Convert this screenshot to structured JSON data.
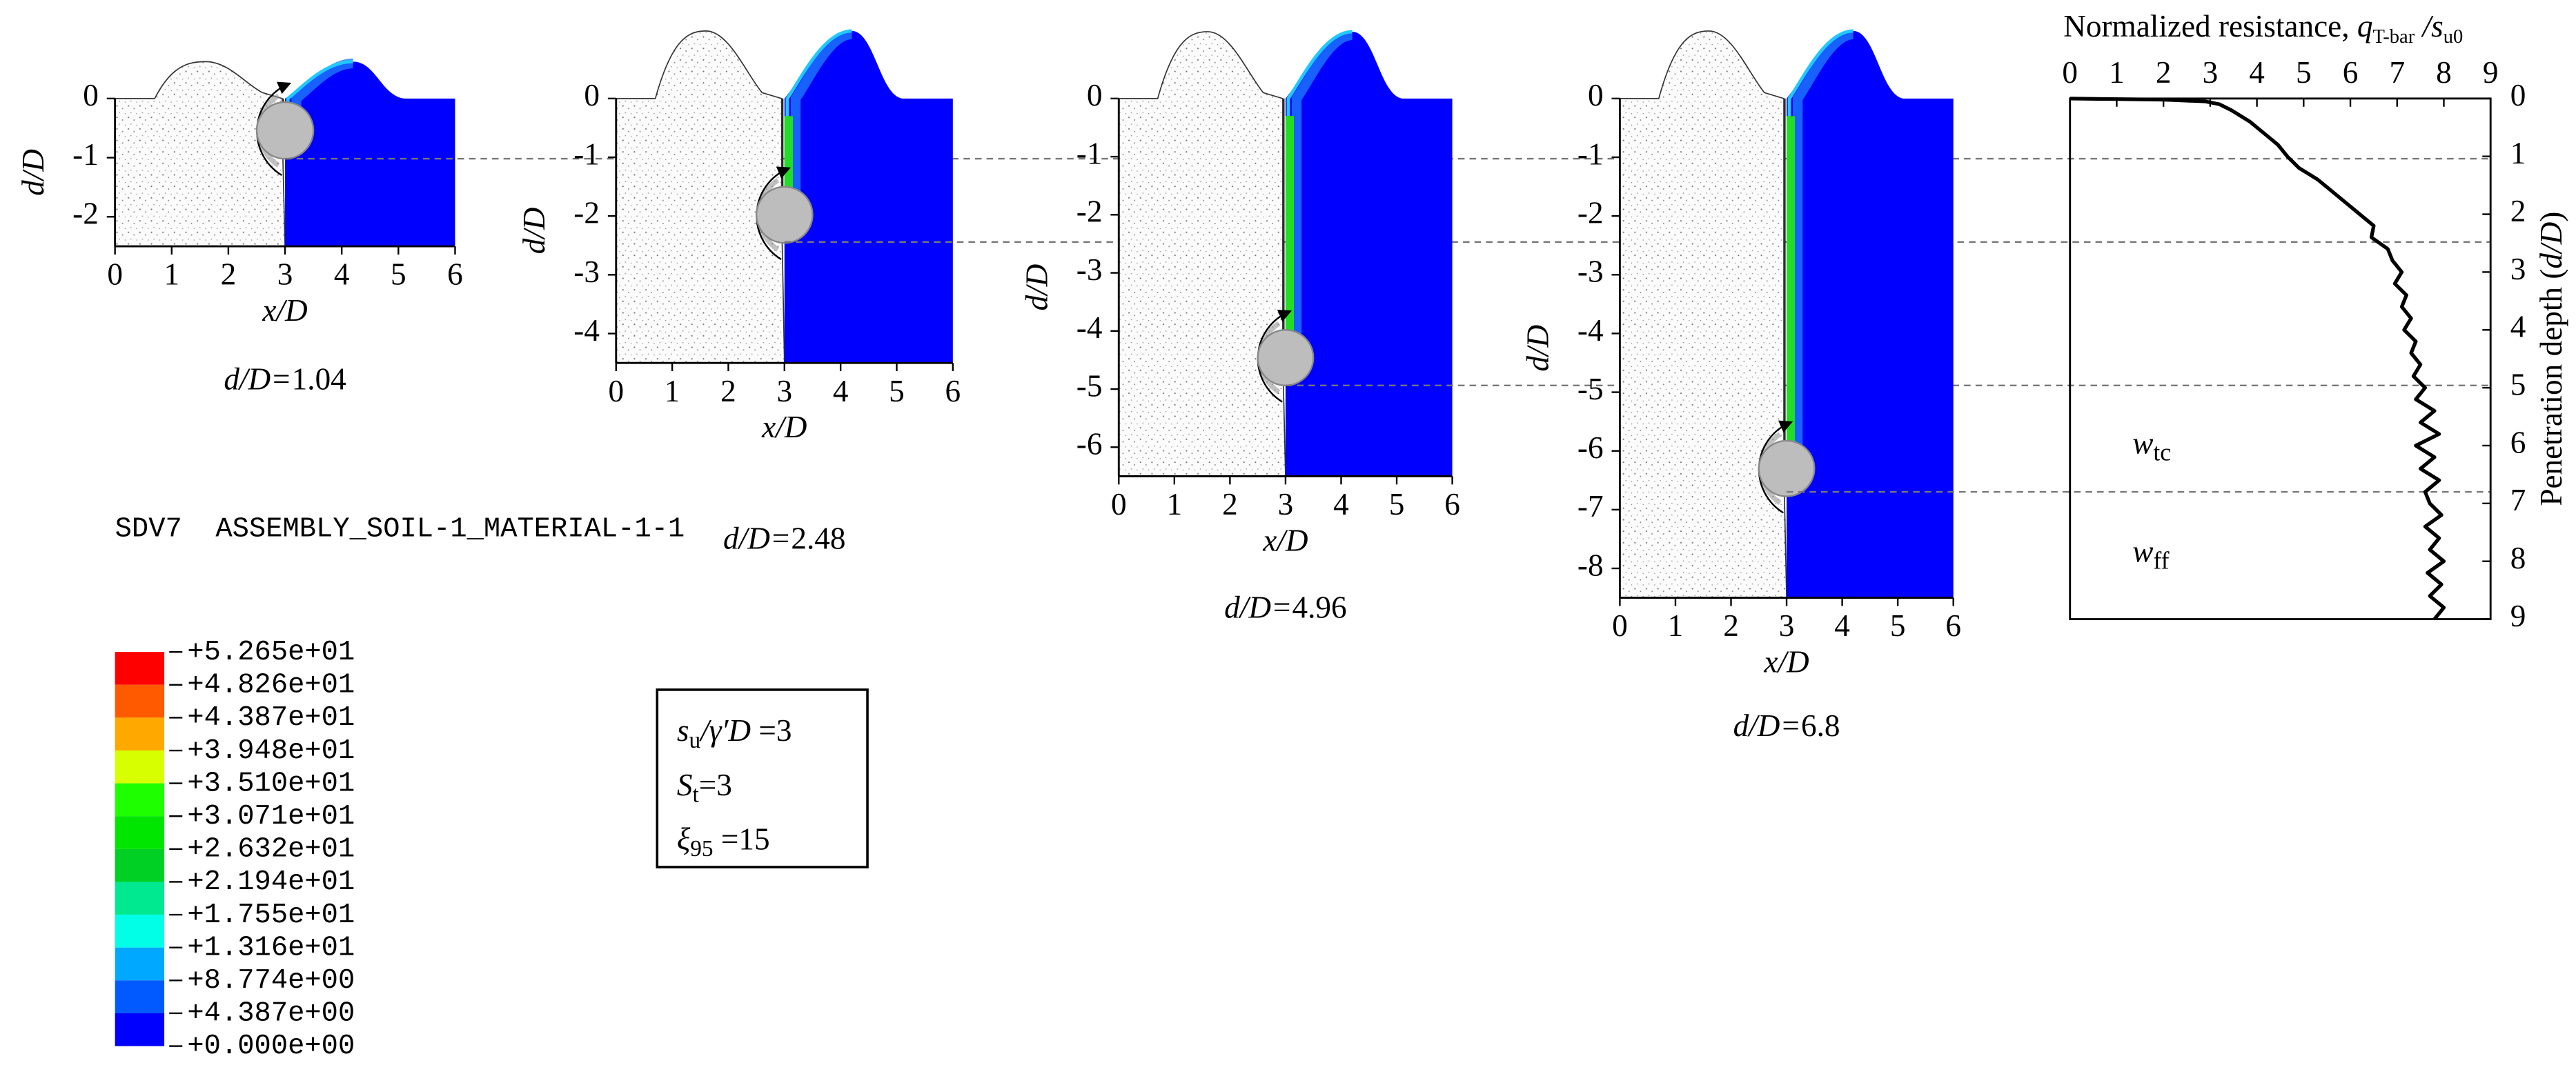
{
  "panels": [
    {
      "xlim": [
        0,
        6
      ],
      "ylim": [
        -2.5,
        0
      ],
      "xticks": [
        0,
        1,
        2,
        3,
        4,
        5,
        6
      ],
      "yticks": [
        0,
        -1,
        -2
      ],
      "xlabel": "x/D",
      "ylabel": "d/D",
      "caption": "d/D=",
      "depth": 1.04
    },
    {
      "xlim": [
        0,
        6
      ],
      "ylim": [
        -4.5,
        0
      ],
      "xticks": [
        0,
        1,
        2,
        3,
        4,
        5,
        6
      ],
      "yticks": [
        0,
        -1,
        -2,
        -3,
        -4
      ],
      "xlabel": "x/D",
      "ylabel": "d/D",
      "caption": "d/D=",
      "depth": 2.48
    },
    {
      "xlim": [
        0,
        6
      ],
      "ylim": [
        -6.5,
        0
      ],
      "xticks": [
        0,
        1,
        2,
        3,
        4,
        5,
        6
      ],
      "yticks": [
        0,
        -1,
        -2,
        -3,
        -4,
        -5,
        -6
      ],
      "xlabel": "x/D",
      "ylabel": "d/D",
      "caption": "d/D=",
      "depth": 4.96
    },
    {
      "xlim": [
        0,
        6
      ],
      "ylim": [
        -8.5,
        0
      ],
      "xticks": [
        0,
        1,
        2,
        3,
        4,
        5,
        6
      ],
      "yticks": [
        0,
        -1,
        -2,
        -3,
        -4,
        -5,
        -6,
        -7,
        -8
      ],
      "xlabel": "x/D",
      "ylabel": "d/D",
      "caption": "d/D=",
      "depth": 6.8
    }
  ],
  "colorbar": {
    "title": "SDV7  ASSEMBLY_SOIL-1_MATERIAL-1-1",
    "clim": [
      0,
      52.65
    ],
    "ticks": [
      {
        "value": 52.65,
        "label": "+5.265e+01"
      },
      {
        "value": 48.26,
        "label": "+4.826e+01"
      },
      {
        "value": 43.87,
        "label": "+4.387e+01"
      },
      {
        "value": 39.48,
        "label": "+3.948e+01"
      },
      {
        "value": 35.1,
        "label": "+3.510e+01"
      },
      {
        "value": 30.71,
        "label": "+3.071e+01"
      },
      {
        "value": 26.32,
        "label": "+2.632e+01"
      },
      {
        "value": 21.94,
        "label": "+2.194e+01"
      },
      {
        "value": 17.55,
        "label": "+1.755e+01"
      },
      {
        "value": 13.16,
        "label": "+1.316e+01"
      },
      {
        "value": 8.774,
        "label": "+8.774e+00"
      },
      {
        "value": 4.387,
        "label": "+4.387e+00"
      },
      {
        "value": 0,
        "label": "+0.000e+00"
      }
    ],
    "colors": [
      "#ff0000",
      "#ff5a00",
      "#ffa800",
      "#d8ff00",
      "#1eff00",
      "#00e600",
      "#00d024",
      "#00e890",
      "#00ffe6",
      "#00a8ff",
      "#005aff",
      "#0000ff"
    ]
  },
  "parameters": [
    [
      {
        "text": "s",
        "style": "italic"
      },
      {
        "text": "u",
        "style": "sub"
      },
      {
        "text": "/γ′D",
        "style": "italic"
      },
      {
        "text": " =3",
        "style": "normal"
      }
    ],
    [
      {
        "text": "S",
        "style": "italic"
      },
      {
        "text": "t",
        "style": "sub"
      },
      {
        "text": "=3",
        "style": "normal"
      }
    ],
    [
      {
        "text": "ξ",
        "style": "italic"
      },
      {
        "text": "95",
        "style": "sub"
      },
      {
        "text": " =15",
        "style": "normal"
      }
    ]
  ],
  "chart_data": {
    "type": "line",
    "x_label": [
      {
        "text": "Normalized resistance,   ",
        "style": "normal"
      },
      {
        "text": "q",
        "style": "italic"
      },
      {
        "text": "T-bar",
        "style": "sub"
      },
      {
        "text": " /s",
        "style": "italic"
      },
      {
        "text": "u0",
        "style": "sub"
      }
    ],
    "y_label": [
      {
        "text": "Penetration depth (",
        "style": "normal"
      },
      {
        "text": "d/D",
        "style": "italic"
      },
      {
        "text": ")",
        "style": "normal"
      }
    ],
    "xlim": [
      0,
      9
    ],
    "ylim": [
      0,
      9
    ],
    "y_inverted": true,
    "x_axis_position": "top",
    "y_axis_position": "right",
    "xticks": [
      0,
      1,
      2,
      3,
      4,
      5,
      6,
      7,
      8,
      9
    ],
    "yticks": [
      0,
      1,
      2,
      3,
      4,
      5,
      6,
      7,
      8,
      9
    ],
    "color": "#000000",
    "x": [
      0,
      2.0,
      2.9,
      3.2,
      3.45,
      3.65,
      3.85,
      4.0,
      4.15,
      4.3,
      4.45,
      4.55,
      4.65,
      4.9,
      5.3,
      5.6,
      5.9,
      6.2,
      6.5,
      6.45,
      6.8,
      6.9,
      7.1,
      6.95,
      7.2,
      7.1,
      7.3,
      7.15,
      7.4,
      7.3,
      7.5,
      7.35,
      7.6,
      7.4,
      7.8,
      7.5,
      7.9,
      7.4,
      7.8,
      7.5,
      7.9,
      7.6,
      7.7,
      7.95,
      7.6,
      7.9,
      7.7,
      8.0,
      7.65,
      7.95,
      7.7,
      8.0,
      7.8
    ],
    "y": [
      0,
      0.02,
      0.05,
      0.1,
      0.2,
      0.3,
      0.4,
      0.5,
      0.6,
      0.7,
      0.8,
      0.9,
      1.0,
      1.2,
      1.4,
      1.6,
      1.8,
      2.0,
      2.2,
      2.4,
      2.6,
      2.8,
      3.0,
      3.2,
      3.4,
      3.6,
      3.8,
      4.0,
      4.2,
      4.4,
      4.6,
      4.8,
      5.0,
      5.2,
      5.4,
      5.6,
      5.8,
      6.0,
      6.2,
      6.4,
      6.6,
      6.8,
      7.0,
      7.2,
      7.4,
      7.6,
      7.8,
      8.0,
      8.2,
      8.4,
      8.6,
      8.8,
      9.0
    ],
    "annotations": [
      [
        {
          "text": "w",
          "style": "italic"
        },
        {
          "text": "tc",
          "style": "sub"
        }
      ],
      [
        {
          "text": "w",
          "style": "italic"
        },
        {
          "text": "ff",
          "style": "sub"
        }
      ]
    ]
  }
}
